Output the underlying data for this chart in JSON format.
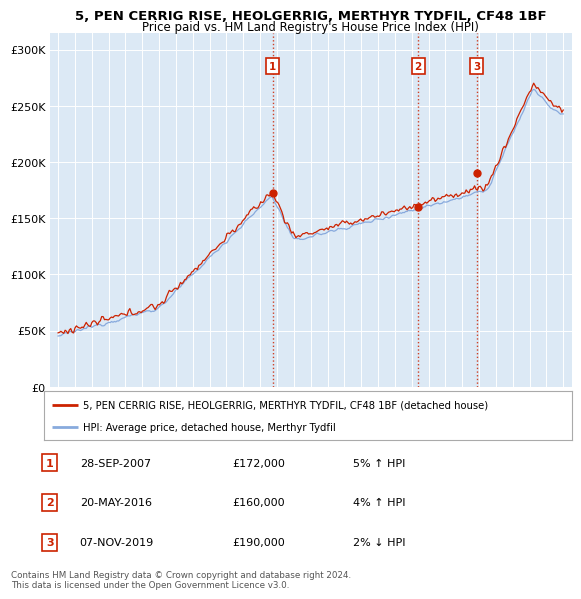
{
  "title_line1": "5, PEN CERRIG RISE, HEOLGERRIG, MERTHYR TYDFIL, CF48 1BF",
  "title_line2": "Price paid vs. HM Land Registry's House Price Index (HPI)",
  "background_color": "#dce9f5",
  "fig_bg_color": "#ffffff",
  "sale_color": "#cc2200",
  "hpi_color": "#88aadd",
  "sale_dates": [
    2007.74,
    2016.38,
    2019.85
  ],
  "sale_prices": [
    172000,
    160000,
    190000
  ],
  "sale_labels": [
    "1",
    "2",
    "3"
  ],
  "legend_sale": "5, PEN CERRIG RISE, HEOLGERRIG, MERTHYR TYDFIL, CF48 1BF (detached house)",
  "legend_hpi": "HPI: Average price, detached house, Merthyr Tydfil",
  "table_rows": [
    [
      "1",
      "28-SEP-2007",
      "£172,000",
      "5% ↑ HPI"
    ],
    [
      "2",
      "20-MAY-2016",
      "£160,000",
      "4% ↑ HPI"
    ],
    [
      "3",
      "07-NOV-2019",
      "£190,000",
      "2% ↓ HPI"
    ]
  ],
  "footer": "Contains HM Land Registry data © Crown copyright and database right 2024.\nThis data is licensed under the Open Government Licence v3.0.",
  "ylim": [
    0,
    315000
  ],
  "xlim_start": 1994.5,
  "xlim_end": 2025.5
}
